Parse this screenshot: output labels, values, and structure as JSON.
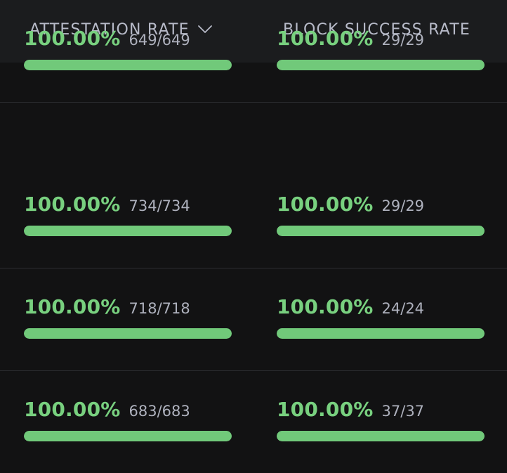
{
  "header": {
    "attestation_label": "ATTESTATION RATE",
    "block_label": "BLOCK SUCCESS RATE",
    "sort_icon": "chevron-down-icon"
  },
  "colors": {
    "background": "#121213",
    "header_background": "#1b1c1e",
    "accent_green": "#78d07f",
    "bar_green": "#71c97a",
    "muted_text": "#aeb1bd"
  },
  "rows": [
    {
      "attestation": {
        "rate": "100.00%",
        "ratio": "734/734",
        "fraction": 1.0
      },
      "block": {
        "rate": "100.00%",
        "ratio": "29/29",
        "fraction": 1.0
      }
    },
    {
      "attestation": {
        "rate": "100.00%",
        "ratio": "718/718",
        "fraction": 1.0
      },
      "block": {
        "rate": "100.00%",
        "ratio": "24/24",
        "fraction": 1.0
      }
    },
    {
      "attestation": {
        "rate": "100.00%",
        "ratio": "683/683",
        "fraction": 1.0
      },
      "block": {
        "rate": "100.00%",
        "ratio": "37/37",
        "fraction": 1.0
      }
    },
    {
      "attestation": {
        "rate": "100.00%",
        "ratio": "649/649",
        "fraction": 1.0
      },
      "block": {
        "rate": "100.00%",
        "ratio": "29/29",
        "fraction": 1.0
      }
    }
  ]
}
